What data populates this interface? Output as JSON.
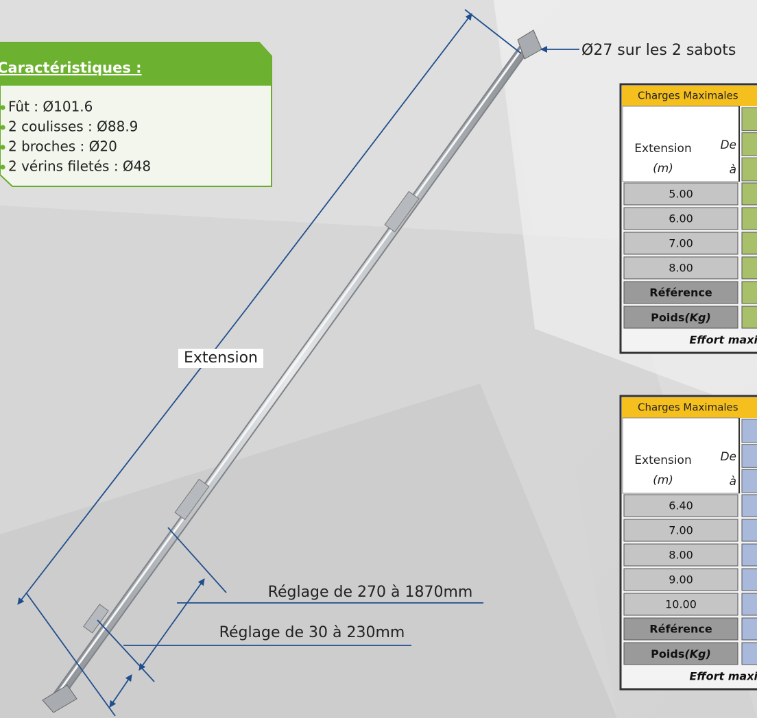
{
  "callouts": {
    "top": "Ø27 sur les 2 sabots",
    "extension": "Extension",
    "reglage_long": "Réglage de 270 à 1870mm",
    "reglage_short": "Réglage de 30 à 230mm"
  },
  "characteristics": {
    "title": "Caractéristiques :",
    "items": [
      "Fût : Ø101.6",
      "2 coulisses : Ø88.9",
      "2 broches : Ø20",
      "2 vérins filetés : Ø48"
    ]
  },
  "tables": [
    {
      "header": "Charges Maximales",
      "extension_label": "Extension",
      "unit": "(m)",
      "from": "De",
      "to": "à",
      "rows": [
        "5.00",
        "6.00",
        "7.00",
        "8.00"
      ],
      "reference": "Référence",
      "weight_label": "Poids",
      "weight_unit": "(Kg)",
      "footer": "Effort maxi"
    },
    {
      "header": "Charges Maximales",
      "extension_label": "Extension",
      "unit": "(m)",
      "from": "De",
      "to": "à",
      "rows": [
        "6.40",
        "7.00",
        "8.00",
        "9.00",
        "10.00"
      ],
      "reference": "Référence",
      "weight_label": "Poids",
      "weight_unit": "(Kg)",
      "footer": "Effort maxi"
    }
  ]
}
